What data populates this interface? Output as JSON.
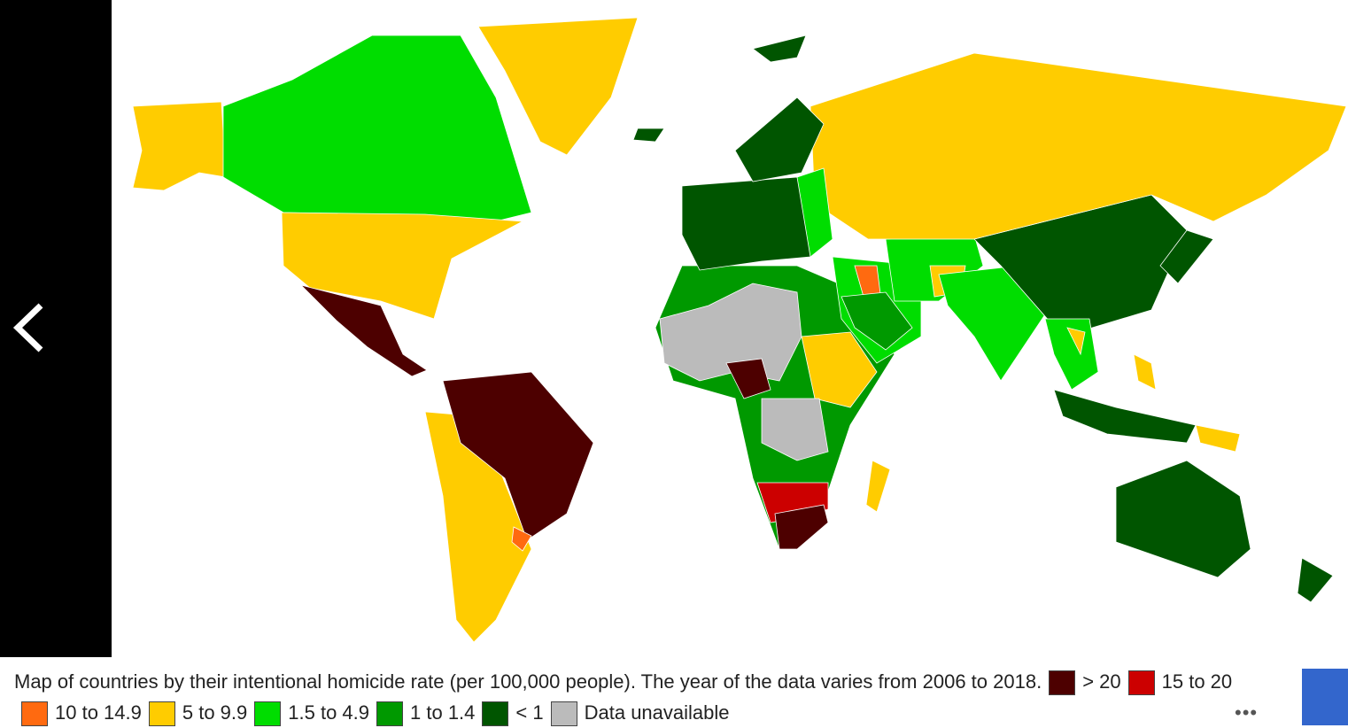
{
  "caption": "Map of countries by their intentional homicide rate (per 100,000 people). The year of the data varies from 2006 to 2018.",
  "legend": [
    {
      "label": "> 20",
      "color": "#4d0000"
    },
    {
      "label": "15 to 20",
      "color": "#cc0000"
    },
    {
      "label": "10 to 14.9",
      "color": "#ff6a10"
    },
    {
      "label": "5 to 9.9",
      "color": "#ffcc00"
    },
    {
      "label": "1.5 to 4.9",
      "color": "#00dd00"
    },
    {
      "label": "1 to 1.4",
      "color": "#009900"
    },
    {
      "label": "< 1",
      "color": "#005500"
    },
    {
      "label": "Data unavailable",
      "color": "#bbbbbb"
    }
  ]
}
